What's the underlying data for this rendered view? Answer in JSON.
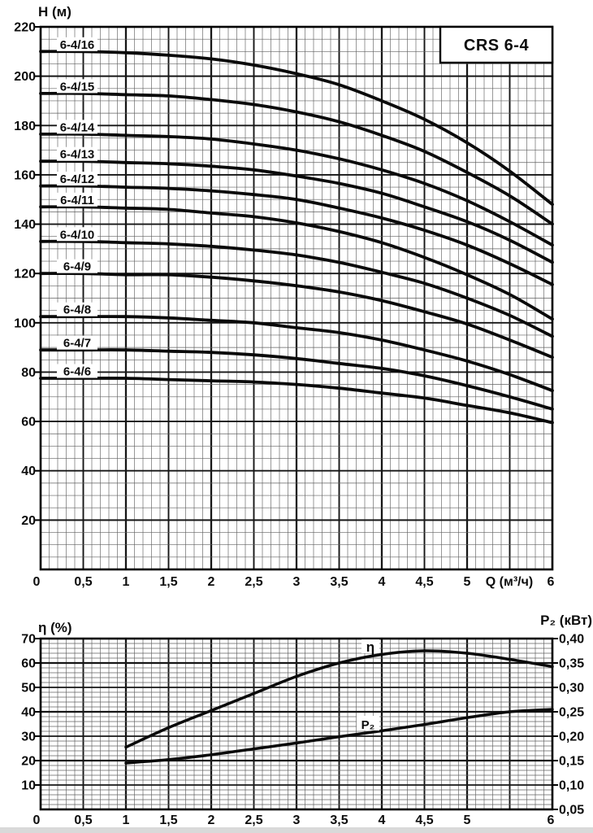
{
  "top_chart": {
    "y_axis_title": "H (м)",
    "x_axis_title": "Q (м³/ч)",
    "model_box": "CRS 6-4",
    "y_tick_labels": [
      "220",
      "200",
      "180",
      "160",
      "140",
      "120",
      "100",
      "80",
      "60",
      "40",
      "20"
    ],
    "y_tick_values": [
      220,
      200,
      180,
      160,
      140,
      120,
      100,
      80,
      60,
      40,
      20
    ],
    "x_tick_labels": [
      "0",
      "0,5",
      "1",
      "1,5",
      "2",
      "2,5",
      "3",
      "3,5",
      "4",
      "4,5",
      "5"
    ],
    "x_last_label": "6"
  },
  "bottom_chart": {
    "left_axis_title": "η (%)",
    "right_axis_title": "P₂ (кВт)",
    "left_tick_labels": [
      "70",
      "60",
      "50",
      "40",
      "30",
      "20",
      "10"
    ],
    "left_tick_values": [
      70,
      60,
      50,
      40,
      30,
      20,
      10
    ],
    "right_tick_labels": [
      "0,40",
      "0,35",
      "0,30",
      "0,25",
      "0,20",
      "0,15",
      "0,10",
      "0,05"
    ],
    "right_tick_values": [
      0.4,
      0.35,
      0.3,
      0.25,
      0.2,
      0.15,
      0.1,
      0.05
    ],
    "x_tick_labels": [
      "0",
      "0,5",
      "1",
      "1,5",
      "2",
      "2,5",
      "3",
      "3,5",
      "4",
      "4,5",
      "5"
    ],
    "x_last_label": "6",
    "eta_curve_label": "η",
    "p2_curve_label": "P₂"
  },
  "chart_data": [
    {
      "type": "line",
      "title": "CRS 6-4",
      "xlabel": "Q (м³/ч)",
      "ylabel": "H (м)",
      "xlim": [
        0,
        6
      ],
      "ylim": [
        0,
        220
      ],
      "grid": "fine",
      "legend_position": "labels-on-curves",
      "x": [
        0,
        0.5,
        1,
        1.5,
        2,
        2.5,
        3,
        3.5,
        4,
        4.5,
        5,
        5.5,
        6
      ],
      "series": [
        {
          "name": "6-4/16",
          "values": [
            210,
            210,
            209.5,
            208.5,
            207,
            204.5,
            201,
            196.5,
            190,
            182.5,
            173,
            161.5,
            148
          ]
        },
        {
          "name": "6-4/15",
          "values": [
            193,
            193,
            192.5,
            192,
            190.5,
            188.5,
            185.5,
            181.5,
            176,
            169.5,
            161,
            151.5,
            140
          ]
        },
        {
          "name": "6-4/14",
          "values": [
            176.5,
            176.5,
            176,
            175.5,
            174.5,
            172.5,
            170,
            166.5,
            162,
            156.5,
            149.5,
            141,
            131.5
          ]
        },
        {
          "name": "6-4/13",
          "values": [
            165.5,
            165.5,
            165,
            164.5,
            163.5,
            162,
            159.5,
            156.5,
            152.5,
            147,
            141,
            133.5,
            124.5
          ]
        },
        {
          "name": "6-4/12",
          "values": [
            155.5,
            155.5,
            155,
            154.5,
            153.5,
            152,
            150,
            146.5,
            142.5,
            137.5,
            131.5,
            124,
            115.5
          ]
        },
        {
          "name": "6-4/11",
          "values": [
            147,
            147,
            146.5,
            146,
            144.5,
            143,
            140.5,
            137,
            132.5,
            126.5,
            119.5,
            111.5,
            101.5
          ]
        },
        {
          "name": "6-4/10",
          "values": [
            133,
            133,
            132.5,
            132,
            131,
            129.5,
            127.5,
            124.5,
            120.5,
            116,
            110,
            103,
            94.5
          ]
        },
        {
          "name": "6-4/9",
          "values": [
            120,
            120,
            119.5,
            119.5,
            118.5,
            117,
            115,
            112.5,
            109,
            104.5,
            99.5,
            93,
            86
          ]
        },
        {
          "name": "6-4/8",
          "values": [
            102.5,
            102.5,
            102.5,
            102,
            101,
            100,
            98,
            96,
            93,
            89,
            84.5,
            79,
            72.5
          ]
        },
        {
          "name": "6-4/7",
          "values": [
            89,
            89,
            89,
            88.5,
            88,
            87,
            85.5,
            83.5,
            81.5,
            78.5,
            74.5,
            70,
            65
          ]
        },
        {
          "name": "6-4/6",
          "values": [
            77.5,
            77.5,
            77.5,
            77,
            76.5,
            76,
            75,
            73.5,
            71.5,
            69.5,
            66.5,
            63.5,
            59.5
          ]
        }
      ]
    },
    {
      "type": "line",
      "xlabel": "Q (м³/ч)",
      "ylabel_left": "η (%)",
      "ylabel_right": "P₂ (кВт)",
      "xlim": [
        0,
        6
      ],
      "ylim_left": [
        0,
        70
      ],
      "ylim_right": [
        0.05,
        0.4
      ],
      "grid": "fine",
      "x": [
        1,
        1.5,
        2,
        2.5,
        3,
        3.5,
        4,
        4.5,
        5,
        5.5,
        6
      ],
      "series": [
        {
          "name": "η",
          "axis": "left",
          "unit": "%",
          "values": [
            25.5,
            33.5,
            40.5,
            47.5,
            54.5,
            60,
            63.5,
            65,
            64,
            61.5,
            58.5
          ]
        },
        {
          "name": "P₂",
          "axis": "right",
          "unit": "кВт",
          "values": [
            0.145,
            0.152,
            0.162,
            0.174,
            0.186,
            0.199,
            0.211,
            0.224,
            0.238,
            0.25,
            0.255
          ]
        }
      ]
    }
  ]
}
